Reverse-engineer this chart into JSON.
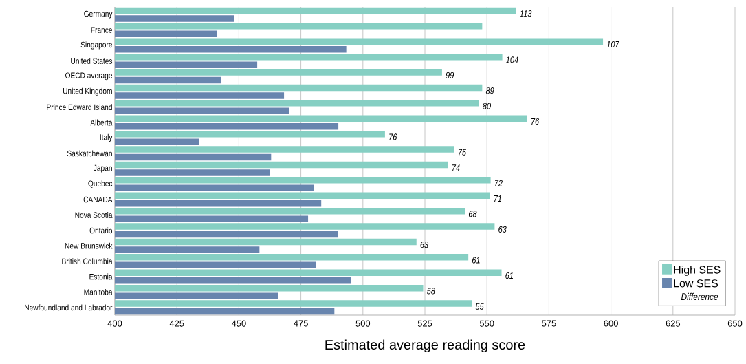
{
  "chart_data": {
    "type": "bar",
    "orientation": "horizontal",
    "xlabel": "Estimated average reading score",
    "legend_title": "Difference",
    "categories": [
      "Germany",
      "France",
      "Singapore",
      "United States",
      "OECD average",
      "United Kingdom",
      "Prince Edward Island",
      "Alberta",
      "Italy",
      "Saskatchewan",
      "Japan",
      "Quebec",
      "CANADA",
      "Nova Scotia",
      "Ontario",
      "New Brunswick",
      "British Columbia",
      "Estonia",
      "Manitoba",
      "Newfoundland and Labrador"
    ],
    "series": [
      {
        "name": "High SES",
        "color": "#86cfc3",
        "values": [
          561.8,
          548.1,
          596.8,
          556.2,
          531.9,
          548.1,
          546.8,
          566.2,
          508.9,
          536.8,
          534.3,
          551.5,
          551.2,
          541.1,
          553.1,
          521.6,
          542.5,
          555.9,
          524.3,
          543.9
        ]
      },
      {
        "name": "Low SES",
        "color": "#6885ae",
        "values": [
          448.2,
          441.2,
          493.3,
          457.4,
          442.7,
          468.2,
          470.2,
          490.1,
          433.9,
          463.0,
          462.5,
          480.3,
          483.2,
          477.9,
          489.8,
          458.3,
          481.2,
          495.1,
          465.8,
          488.5
        ]
      }
    ],
    "xlim": [
      400,
      650
    ],
    "xticks": [
      400,
      425,
      450,
      475,
      500,
      525,
      550,
      575,
      600,
      625,
      650
    ],
    "annotations": [
      {
        "text": "113",
        "x": 561.8,
        "y": "Germany"
      },
      {
        "text": "107",
        "x": 596.8,
        "y": "Singapore"
      },
      {
        "text": "104",
        "x": 556.2,
        "y": "United States"
      },
      {
        "text": "99",
        "x": 531.9,
        "y": "OECD average"
      },
      {
        "text": "89",
        "x": 548.1,
        "y": "United Kingdom"
      },
      {
        "text": "80",
        "x": 546.8,
        "y": "Prince Edward Island"
      },
      {
        "text": "76",
        "x": 566.2,
        "y": "Alberta"
      },
      {
        "text": "76",
        "x": 508.9,
        "y": "Italy"
      },
      {
        "text": "75",
        "x": 536.8,
        "y": "Saskatchewan"
      },
      {
        "text": "74",
        "x": 534.3,
        "y": "Japan"
      },
      {
        "text": "72",
        "x": 551.5,
        "y": "Quebec"
      },
      {
        "text": "71",
        "x": 551.2,
        "y": "CANADA"
      },
      {
        "text": "68",
        "x": 541.1,
        "y": "Nova Scotia"
      },
      {
        "text": "63",
        "x": 553.1,
        "y": "Ontario"
      },
      {
        "text": "63",
        "x": 521.6,
        "y": "New Brunswick"
      },
      {
        "text": "61",
        "x": 542.5,
        "y": "British Columbia"
      },
      {
        "text": "61",
        "x": 555.9,
        "y": "Estonia"
      },
      {
        "text": "58",
        "x": 524.3,
        "y": "Manitoba"
      },
      {
        "text": "55",
        "x": 543.9,
        "y": "Newfoundland and Labrador"
      }
    ],
    "grid": "x",
    "legend": "bottom right"
  }
}
